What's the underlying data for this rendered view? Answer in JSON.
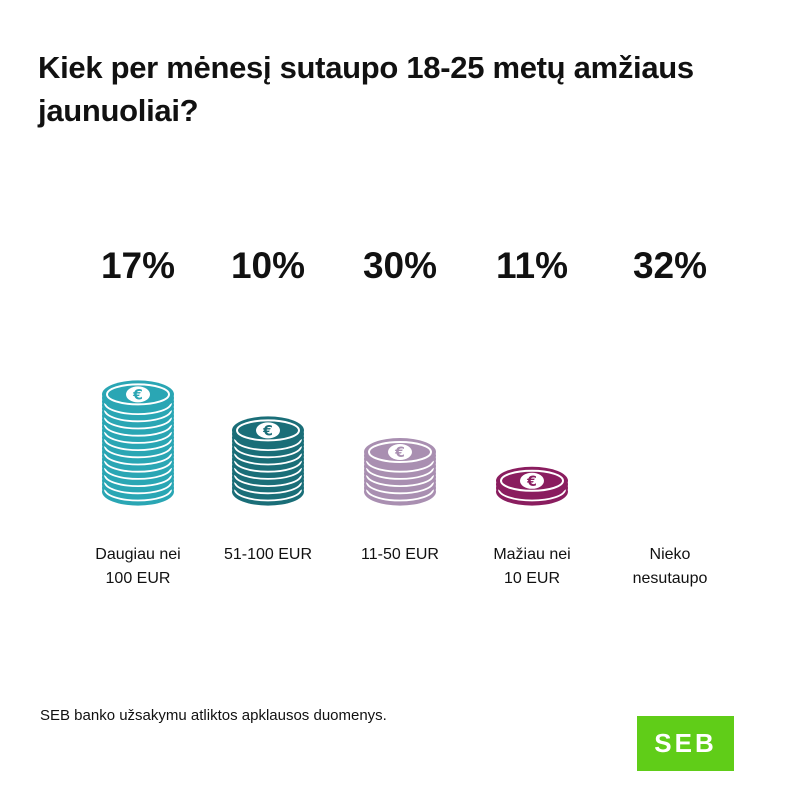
{
  "title": "Kiek per mėnesį sutaupo 18-25 metų amžiaus jaunuoliai?",
  "chart_data": {
    "type": "bar",
    "categories": [
      "Daugiau nei\n100 EUR",
      "51-100 EUR",
      "11-50 EUR",
      "Mažiau nei\n10 EUR",
      "Nieko\nnesutaupo"
    ],
    "values": [
      17,
      10,
      30,
      11,
      32
    ],
    "value_labels": [
      "17%",
      "10%",
      "30%",
      "11%",
      "32%"
    ],
    "coin_counts": [
      14,
      9,
      6,
      2,
      0
    ],
    "colors": [
      "#2aa6b4",
      "#1a6e78",
      "#a98fb1",
      "#8a1d5f",
      "#cccccc"
    ],
    "coin_icon": "euro-icon",
    "legend": "none"
  },
  "source": "SEB banko užsakymu atliktos apklausos duomenys.",
  "logo": {
    "text": "SEB",
    "color": "#60cd18"
  }
}
